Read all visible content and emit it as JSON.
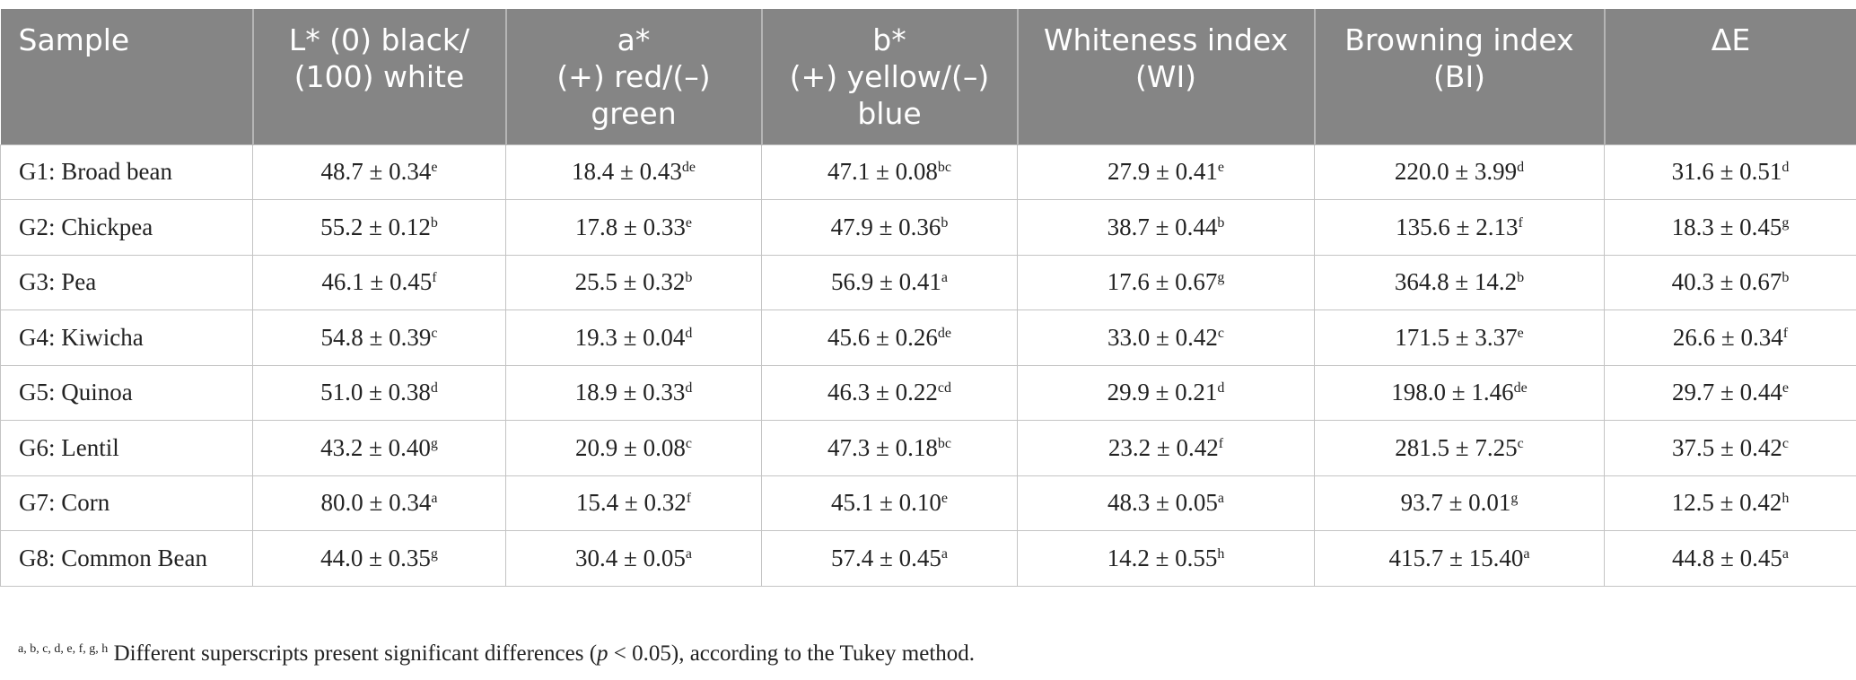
{
  "table": {
    "header": [
      "Sample",
      "L* (0) black/\n(100) white",
      "a*\n(+) red/(–)\ngreen",
      "b*\n(+) yellow/(–)\nblue",
      "Whiteness index\n(WI)",
      "Browning index\n(BI)",
      "ΔE"
    ],
    "rows": [
      [
        "G1: Broad bean",
        {
          "text": "48.7 ± 0.34",
          "sup": "e"
        },
        {
          "text": "18.4 ± 0.43",
          "sup": "de"
        },
        {
          "text": "47.1 ± 0.08",
          "sup": "bc"
        },
        {
          "text": "27.9 ± 0.41",
          "sup": "e"
        },
        {
          "text": "220.0 ± 3.99",
          "sup": "d"
        },
        {
          "text": "31.6 ± 0.51",
          "sup": "d"
        }
      ],
      [
        "G2: Chickpea",
        {
          "text": "55.2 ± 0.12",
          "sup": "b"
        },
        {
          "text": "17.8 ± 0.33",
          "sup": "e"
        },
        {
          "text": "47.9 ± 0.36",
          "sup": "b"
        },
        {
          "text": "38.7 ± 0.44",
          "sup": "b"
        },
        {
          "text": "135.6 ± 2.13",
          "sup": "f"
        },
        {
          "text": "18.3 ± 0.45",
          "sup": "g"
        }
      ],
      [
        "G3: Pea",
        {
          "text": "46.1 ± 0.45",
          "sup": "f"
        },
        {
          "text": "25.5 ± 0.32",
          "sup": "b"
        },
        {
          "text": "56.9 ± 0.41",
          "sup": "a"
        },
        {
          "text": "17.6 ± 0.67",
          "sup": "g"
        },
        {
          "text": "364.8 ± 14.2",
          "sup": "b"
        },
        {
          "text": "40.3 ± 0.67",
          "sup": "b"
        }
      ],
      [
        "G4: Kiwicha",
        {
          "text": "54.8 ± 0.39",
          "sup": "c"
        },
        {
          "text": "19.3 ± 0.04",
          "sup": "d"
        },
        {
          "text": "45.6 ± 0.26",
          "sup": "de"
        },
        {
          "text": "33.0 ± 0.42",
          "sup": "c"
        },
        {
          "text": "171.5 ± 3.37",
          "sup": "e"
        },
        {
          "text": "26.6 ± 0.34",
          "sup": "f"
        }
      ],
      [
        "G5: Quinoa",
        {
          "text": "51.0 ± 0.38",
          "sup": "d"
        },
        {
          "text": "18.9 ± 0.33",
          "sup": "d"
        },
        {
          "text": "46.3 ± 0.22",
          "sup": "cd"
        },
        {
          "text": "29.9 ± 0.21",
          "sup": "d"
        },
        {
          "text": "198.0 ± 1.46",
          "sup": "de"
        },
        {
          "text": "29.7 ± 0.44",
          "sup": "e"
        }
      ],
      [
        "G6: Lentil",
        {
          "text": "43.2 ± 0.40",
          "sup": "g"
        },
        {
          "text": "20.9 ± 0.08",
          "sup": "c"
        },
        {
          "text": "47.3 ± 0.18",
          "sup": "bc"
        },
        {
          "text": "23.2 ± 0.42",
          "sup": "f"
        },
        {
          "text": "281.5 ± 7.25",
          "sup": "c"
        },
        {
          "text": "37.5 ± 0.42",
          "sup": "c"
        }
      ],
      [
        "G7: Corn",
        {
          "text": "80.0 ± 0.34",
          "sup": "a"
        },
        {
          "text": "15.4 ± 0.32",
          "sup": "f"
        },
        {
          "text": "45.1 ± 0.10",
          "sup": "e"
        },
        {
          "text": "48.3 ± 0.05",
          "sup": "a"
        },
        {
          "text": "93.7 ± 0.01",
          "sup": "g"
        },
        {
          "text": "12.5 ± 0.42",
          "sup": "h"
        }
      ],
      [
        "G8: Common Bean",
        {
          "text": "44.0 ± 0.35",
          "sup": "g"
        },
        {
          "text": "30.4 ± 0.05",
          "sup": "a"
        },
        {
          "text": "57.4 ± 0.45",
          "sup": "a"
        },
        {
          "text": "14.2 ± 0.55",
          "sup": "h"
        },
        {
          "text": "415.7 ± 15.40",
          "sup": "a"
        },
        {
          "text": "44.8 ± 0.45",
          "sup": "a"
        }
      ]
    ]
  },
  "footnote": {
    "sup": "a, b, c, d, e, f, g, h",
    "text1": " Different superscripts present significant differences (",
    "italic": "p",
    "text2": " < 0.05), according to the Tukey method."
  }
}
